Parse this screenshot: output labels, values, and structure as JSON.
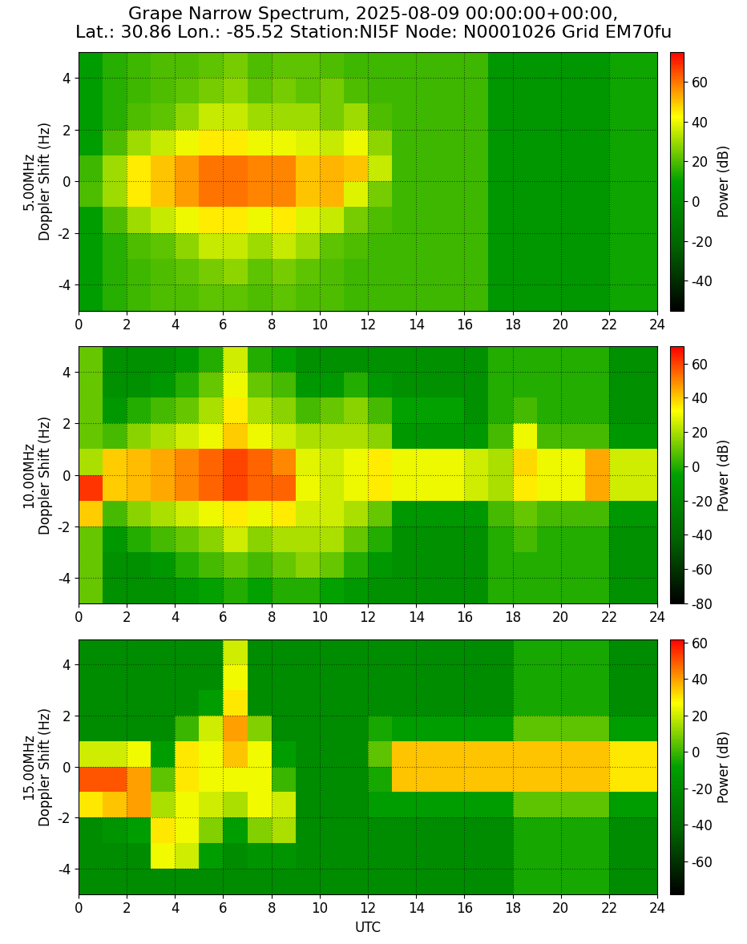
{
  "title": "Grape Narrow Spectrum, 2025-08-09 00:00:00+00:00,\nLat.: 30.86 Lon.: -85.52 Station:NI5F Node: N0001026 Grid EM70fu",
  "chart_data": [
    {
      "type": "heatmap",
      "ylabel": "5.00MHz\nDoppler Shift (Hz)",
      "grid": true,
      "xlim": [
        0,
        24
      ],
      "xticks": [
        0,
        2,
        4,
        6,
        8,
        10,
        12,
        14,
        16,
        18,
        20,
        22,
        24
      ],
      "ylim": [
        -5,
        5
      ],
      "yticks": [
        -4,
        -2,
        0,
        2,
        4
      ],
      "x_bins": [
        0,
        1,
        2,
        3,
        4,
        5,
        6,
        7,
        8,
        9,
        10,
        11,
        12,
        13,
        14,
        15,
        16,
        17,
        18,
        19,
        20,
        21,
        22,
        23,
        24
      ],
      "y_bins": [
        -5,
        -4,
        -3,
        -2,
        -1,
        0,
        1,
        2,
        3,
        4,
        5
      ],
      "colorbar": {
        "label": "Power (dB)",
        "range": [
          -55,
          75
        ],
        "ticks": [
          -40,
          -20,
          0,
          20,
          40,
          60
        ]
      },
      "cells": [
        [
          8,
          8,
          8,
          8,
          20,
          18,
          8,
          8,
          8,
          8
        ],
        [
          15,
          15,
          15,
          20,
          30,
          30,
          20,
          15,
          15,
          15
        ],
        [
          18,
          18,
          20,
          30,
          45,
          45,
          30,
          20,
          18,
          18
        ],
        [
          20,
          20,
          22,
          35,
          50,
          50,
          35,
          22,
          20,
          20
        ],
        [
          20,
          22,
          28,
          40,
          55,
          55,
          40,
          28,
          22,
          20
        ],
        [
          22,
          25,
          35,
          45,
          60,
          60,
          45,
          35,
          25,
          22
        ],
        [
          22,
          28,
          35,
          45,
          60,
          60,
          45,
          35,
          28,
          25
        ],
        [
          20,
          22,
          30,
          40,
          58,
          58,
          40,
          30,
          22,
          20
        ],
        [
          22,
          25,
          35,
          45,
          58,
          58,
          40,
          30,
          25,
          22
        ],
        [
          20,
          22,
          30,
          38,
          50,
          50,
          38,
          30,
          22,
          22
        ],
        [
          20,
          20,
          22,
          35,
          52,
          52,
          35,
          25,
          25,
          20
        ],
        [
          18,
          18,
          20,
          25,
          38,
          50,
          40,
          30,
          20,
          18
        ],
        [
          18,
          18,
          18,
          20,
          25,
          35,
          28,
          20,
          18,
          18
        ],
        [
          18,
          18,
          18,
          18,
          18,
          18,
          18,
          18,
          18,
          18
        ],
        [
          18,
          18,
          18,
          18,
          18,
          18,
          18,
          18,
          18,
          18
        ],
        [
          18,
          18,
          18,
          18,
          18,
          18,
          18,
          18,
          18,
          18
        ],
        [
          18,
          18,
          18,
          18,
          18,
          18,
          18,
          18,
          18,
          18
        ],
        [
          5,
          5,
          5,
          5,
          5,
          5,
          5,
          5,
          5,
          5
        ],
        [
          5,
          5,
          5,
          5,
          5,
          5,
          5,
          5,
          5,
          5
        ],
        [
          5,
          5,
          5,
          5,
          5,
          5,
          5,
          5,
          5,
          5
        ],
        [
          5,
          5,
          5,
          5,
          5,
          5,
          5,
          5,
          5,
          5
        ],
        [
          5,
          5,
          5,
          5,
          5,
          5,
          5,
          5,
          5,
          5
        ],
        [
          12,
          12,
          12,
          12,
          12,
          12,
          12,
          12,
          12,
          12
        ],
        [
          12,
          12,
          12,
          12,
          12,
          12,
          12,
          12,
          12,
          12
        ]
      ]
    },
    {
      "type": "heatmap",
      "ylabel": "10.00MHz\nDoppler Shift (Hz)",
      "grid": true,
      "xlim": [
        0,
        24
      ],
      "xticks": [
        0,
        2,
        4,
        6,
        8,
        10,
        12,
        14,
        16,
        18,
        20,
        22,
        24
      ],
      "ylim": [
        -5,
        5
      ],
      "yticks": [
        -4,
        -2,
        0,
        2,
        4
      ],
      "x_bins": [
        0,
        1,
        2,
        3,
        4,
        5,
        6,
        7,
        8,
        9,
        10,
        11,
        12,
        13,
        14,
        15,
        16,
        17,
        18,
        19,
        20,
        21,
        22,
        23,
        24
      ],
      "y_bins": [
        -5,
        -4,
        -3,
        -2,
        -1,
        0,
        1,
        2,
        3,
        4,
        5
      ],
      "colorbar": {
        "label": "Power (dB)",
        "range": [
          -80,
          70
        ],
        "ticks": [
          -80,
          -60,
          -40,
          -20,
          0,
          20,
          40,
          60
        ]
      },
      "cells": [
        [
          10,
          10,
          10,
          40,
          62,
          20,
          10,
          10,
          10,
          10
        ],
        [
          -15,
          -15,
          -10,
          5,
          40,
          40,
          5,
          -10,
          -15,
          -15
        ],
        [
          -15,
          -15,
          0,
          15,
          42,
          42,
          15,
          0,
          -15,
          -15
        ],
        [
          -15,
          -10,
          5,
          20,
          45,
          45,
          20,
          5,
          -10,
          -15
        ],
        [
          -10,
          0,
          10,
          25,
          50,
          50,
          25,
          10,
          0,
          -10
        ],
        [
          -5,
          5,
          15,
          30,
          55,
          55,
          30,
          20,
          10,
          0
        ],
        [
          0,
          10,
          25,
          35,
          60,
          60,
          40,
          35,
          30,
          25
        ],
        [
          -5,
          5,
          15,
          30,
          55,
          55,
          30,
          20,
          10,
          0
        ],
        [
          0,
          10,
          20,
          35,
          55,
          50,
          25,
          15,
          5,
          -5
        ],
        [
          0,
          15,
          20,
          25,
          30,
          28,
          20,
          5,
          -10,
          -15
        ],
        [
          -5,
          10,
          20,
          25,
          25,
          25,
          20,
          10,
          -10,
          -15
        ],
        [
          -10,
          0,
          10,
          20,
          30,
          30,
          20,
          15,
          0,
          -15
        ],
        [
          -15,
          -10,
          0,
          10,
          35,
          35,
          15,
          5,
          -10,
          -15
        ],
        [
          -15,
          -15,
          -15,
          -10,
          30,
          30,
          -10,
          -5,
          -15,
          -15
        ],
        [
          -15,
          -15,
          -15,
          -10,
          30,
          30,
          -10,
          -5,
          -15,
          -15
        ],
        [
          -15,
          -15,
          -15,
          -10,
          30,
          30,
          -10,
          -5,
          -15,
          -15
        ],
        [
          -15,
          -15,
          -15,
          -10,
          25,
          25,
          -10,
          -15,
          -15,
          -15
        ],
        [
          0,
          0,
          0,
          5,
          20,
          20,
          5,
          0,
          0,
          0
        ],
        [
          0,
          0,
          5,
          10,
          35,
          38,
          30,
          5,
          0,
          0
        ],
        [
          0,
          0,
          0,
          5,
          30,
          30,
          5,
          0,
          0,
          0
        ],
        [
          0,
          0,
          0,
          5,
          30,
          30,
          5,
          0,
          0,
          0
        ],
        [
          0,
          0,
          0,
          5,
          45,
          45,
          5,
          0,
          0,
          0
        ],
        [
          -15,
          -15,
          -15,
          -10,
          25,
          25,
          -10,
          -15,
          -15,
          -15
        ],
        [
          -15,
          -15,
          -15,
          -10,
          25,
          25,
          -10,
          -15,
          -15,
          -15
        ]
      ]
    },
    {
      "type": "heatmap",
      "ylabel": "15.00MHz\nDoppler Shift (Hz)",
      "xlabel": "UTC",
      "grid": true,
      "xlim": [
        0,
        24
      ],
      "xticks": [
        0,
        2,
        4,
        6,
        8,
        10,
        12,
        14,
        16,
        18,
        20,
        22,
        24
      ],
      "ylim": [
        -5,
        5
      ],
      "yticks": [
        -4,
        -2,
        0,
        2,
        4
      ],
      "x_bins": [
        0,
        1,
        2,
        3,
        4,
        5,
        6,
        7,
        8,
        9,
        10,
        11,
        12,
        13,
        14,
        15,
        16,
        17,
        18,
        19,
        20,
        21,
        22,
        23,
        24
      ],
      "y_bins": [
        -5,
        -4,
        -3,
        -2,
        -1,
        0,
        1,
        2,
        3,
        4,
        5
      ],
      "colorbar": {
        "label": "Power (dB)",
        "range": [
          -78,
          62
        ],
        "ticks": [
          -60,
          -40,
          -20,
          0,
          20,
          40,
          60
        ]
      },
      "cells": [
        [
          -20,
          -20,
          -20,
          30,
          50,
          20,
          -20,
          -20,
          -20,
          -20
        ],
        [
          -20,
          -20,
          -15,
          35,
          50,
          20,
          -20,
          -20,
          -20,
          -20
        ],
        [
          -20,
          -20,
          -10,
          40,
          40,
          25,
          -20,
          -20,
          -20,
          -20
        ],
        [
          -20,
          25,
          30,
          15,
          5,
          -10,
          -20,
          -20,
          -20,
          -20
        ],
        [
          -20,
          20,
          25,
          25,
          30,
          30,
          0,
          -20,
          -20,
          -20
        ],
        [
          -20,
          -10,
          10,
          20,
          25,
          25,
          20,
          -10,
          -20,
          -20
        ],
        [
          -20,
          -20,
          -10,
          15,
          25,
          35,
          40,
          30,
          25,
          20
        ],
        [
          -20,
          -15,
          10,
          25,
          25,
          25,
          10,
          -20,
          -20,
          -20
        ],
        [
          -20,
          -15,
          15,
          20,
          0,
          -10,
          -20,
          -20,
          -20,
          -20
        ],
        [
          -20,
          -20,
          -20,
          -20,
          -20,
          -20,
          -20,
          -20,
          -20,
          -20
        ],
        [
          -20,
          -20,
          -20,
          -20,
          -20,
          -20,
          -20,
          -20,
          -20,
          -20
        ],
        [
          -20,
          -20,
          -20,
          -20,
          -20,
          -20,
          -20,
          -20,
          -20,
          -20
        ],
        [
          -20,
          -20,
          -20,
          -10,
          -5,
          5,
          -5,
          -20,
          -20,
          -20
        ],
        [
          -20,
          -20,
          -20,
          -10,
          35,
          35,
          -10,
          -20,
          -20,
          -20
        ],
        [
          -20,
          -20,
          -20,
          -10,
          35,
          35,
          -10,
          -20,
          -20,
          -20
        ],
        [
          -20,
          -20,
          -20,
          -10,
          35,
          35,
          -10,
          -20,
          -20,
          -20
        ],
        [
          -20,
          -20,
          -20,
          -10,
          35,
          35,
          -10,
          -20,
          -20,
          -20
        ],
        [
          -20,
          -20,
          -20,
          -10,
          35,
          35,
          -10,
          -20,
          -20,
          -20
        ],
        [
          -5,
          -5,
          -5,
          5,
          35,
          35,
          5,
          -5,
          -5,
          -5
        ],
        [
          -5,
          -5,
          -5,
          5,
          35,
          35,
          5,
          -5,
          -5,
          -5
        ],
        [
          -5,
          -5,
          -5,
          5,
          35,
          35,
          5,
          -5,
          -5,
          -5
        ],
        [
          -5,
          -5,
          -5,
          5,
          35,
          35,
          5,
          -5,
          -5,
          -5
        ],
        [
          -20,
          -20,
          -20,
          -10,
          30,
          30,
          -10,
          -20,
          -20,
          -20
        ],
        [
          -20,
          -20,
          -20,
          -10,
          30,
          30,
          -10,
          -20,
          -20,
          -20
        ]
      ]
    }
  ]
}
